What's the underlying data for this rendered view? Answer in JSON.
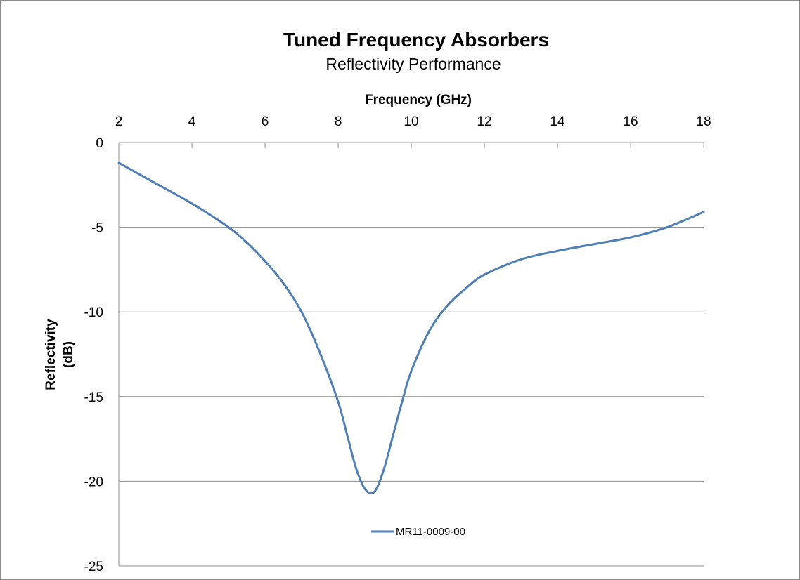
{
  "chart_data": {
    "type": "line",
    "title": "Tuned Frequency Absorbers",
    "subtitle": "Reflectivity Performance",
    "xlabel": "Frequency (GHz)",
    "ylabel_line1": "Reflectivity",
    "ylabel_line2": "(dB)",
    "xlim": [
      2,
      18
    ],
    "ylim": [
      -25,
      0
    ],
    "x_ticks": [
      "2",
      "4",
      "6",
      "8",
      "10",
      "12",
      "14",
      "16",
      "18"
    ],
    "y_ticks": [
      "0",
      "-5",
      "-10",
      "-15",
      "-20",
      "-25"
    ],
    "x_axis_position": "top",
    "grid": "horizontal",
    "legend_position": "bottom-center",
    "series": [
      {
        "name": "MR11-0009-00",
        "color": "#4f7fb4",
        "x": [
          2,
          3,
          4,
          5,
          5.5,
          6,
          6.5,
          7,
          7.5,
          8,
          8.25,
          8.5,
          8.75,
          9,
          9.25,
          9.5,
          9.75,
          10,
          10.5,
          11,
          11.5,
          12,
          13,
          14,
          15,
          16,
          17,
          18
        ],
        "values": [
          -1.2,
          -2.4,
          -3.6,
          -5.0,
          -5.9,
          -7.0,
          -8.3,
          -10.0,
          -12.4,
          -15.3,
          -17.3,
          -19.3,
          -20.5,
          -20.6,
          -19.3,
          -17.3,
          -15.3,
          -13.5,
          -11.1,
          -9.6,
          -8.6,
          -7.8,
          -6.9,
          -6.4,
          -6.0,
          -5.6,
          -5.0,
          -4.1
        ]
      }
    ]
  }
}
